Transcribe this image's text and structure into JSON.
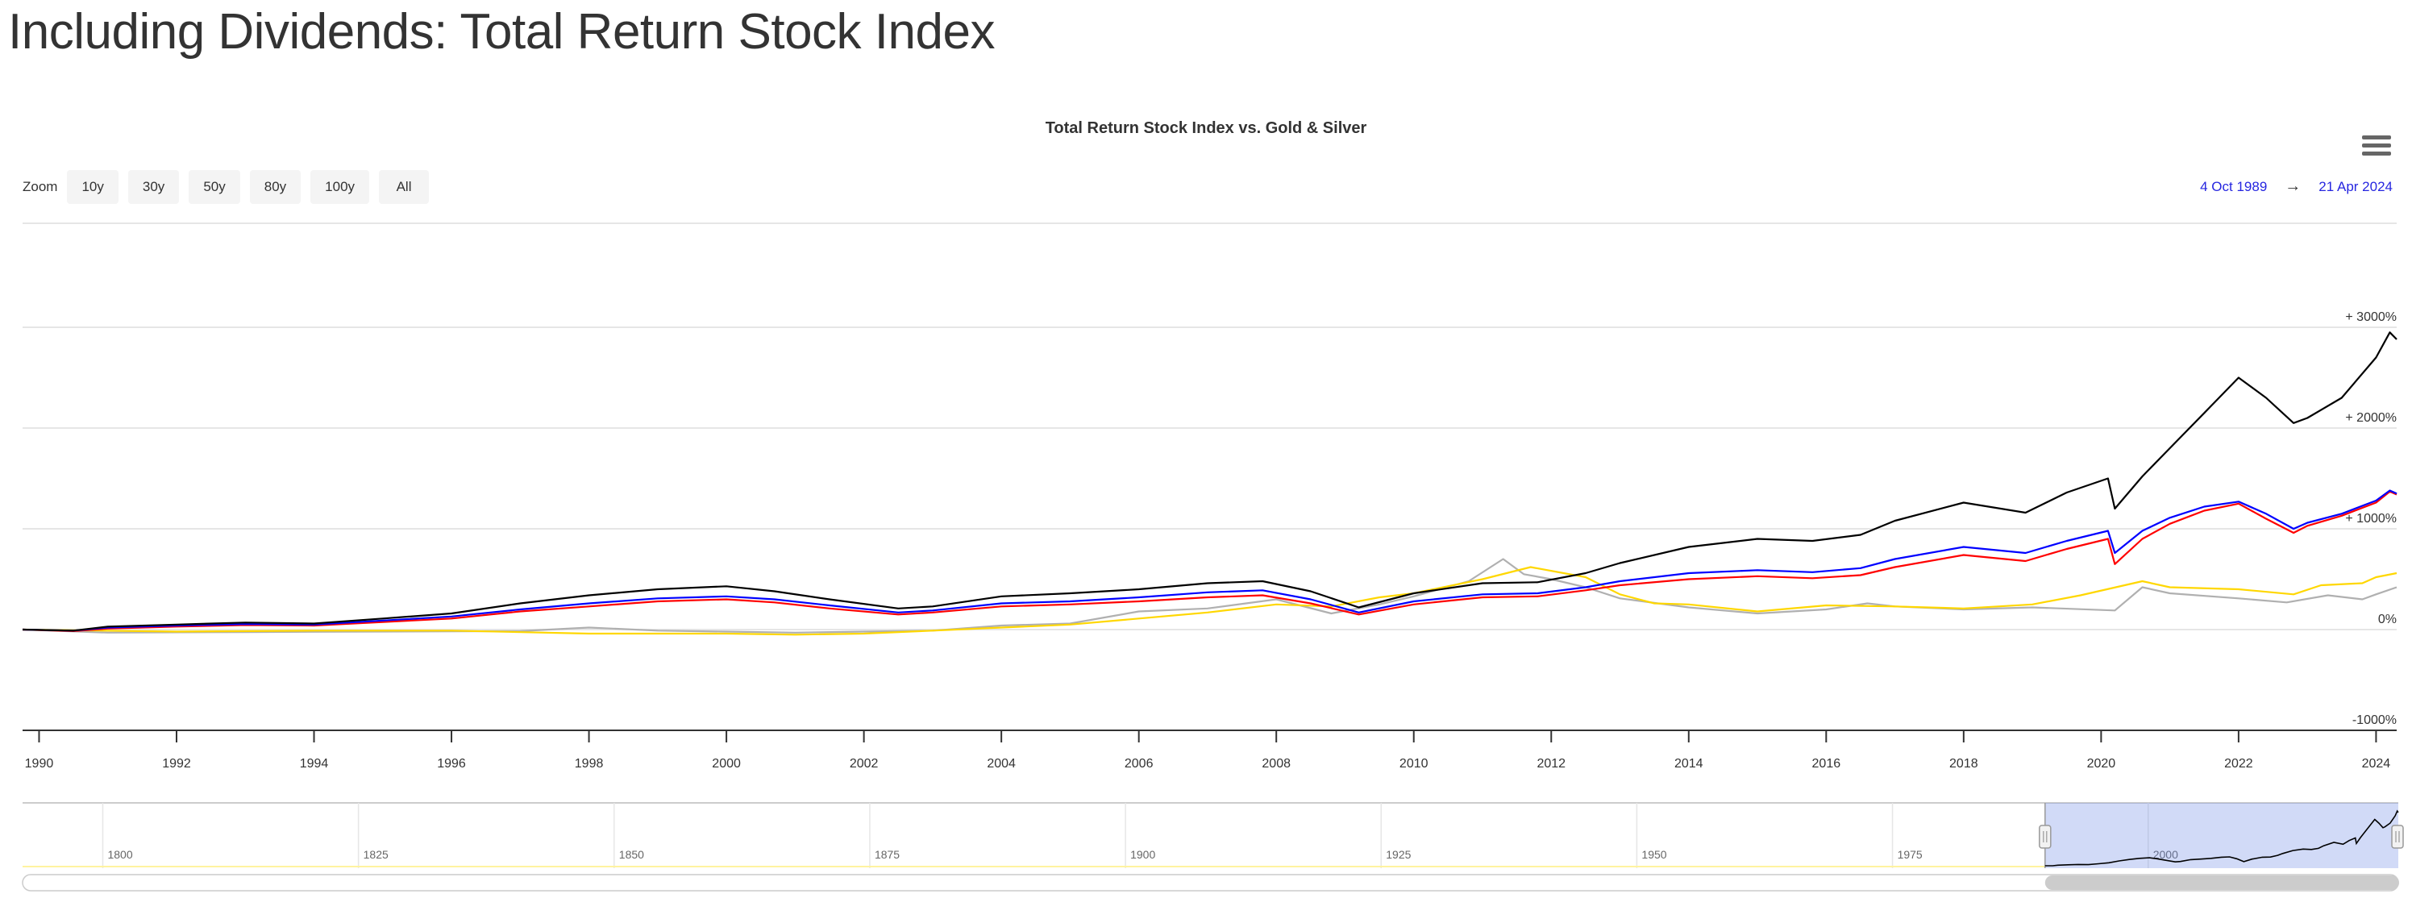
{
  "page": {
    "title": "Including Dividends: Total Return Stock Index"
  },
  "toolbar": {
    "zoom_label": "Zoom",
    "zoom_buttons": [
      "10y",
      "30y",
      "50y",
      "80y",
      "100y",
      "All"
    ],
    "range_from": "4 Oct 1989",
    "range_arrow": "→",
    "range_to": "21 Apr 2024",
    "menu_icon": "hamburger-menu-icon"
  },
  "chart_data": {
    "type": "line",
    "title": "Total Return Stock Index vs. Gold & Silver",
    "xlabel": "",
    "ylabel": "",
    "xlim": [
      1989.76,
      2024.3
    ],
    "ylim": [
      -1000,
      4000
    ],
    "grid": true,
    "legend": "none",
    "x_ticks": [
      1990,
      1992,
      1994,
      1996,
      1998,
      2000,
      2002,
      2004,
      2006,
      2008,
      2010,
      2012,
      2014,
      2016,
      2018,
      2020,
      2022,
      2024
    ],
    "y_ticks": [
      {
        "value": -1000,
        "label": "-1000%"
      },
      {
        "value": 0,
        "label": "0%"
      },
      {
        "value": 1000,
        "label": "+ 1000%"
      },
      {
        "value": 2000,
        "label": "+ 2000%"
      },
      {
        "value": 3000,
        "label": "+ 3000%"
      }
    ],
    "series": [
      {
        "color": "#000000",
        "points": [
          [
            1989.76,
            0
          ],
          [
            1990.5,
            -10
          ],
          [
            1991,
            30
          ],
          [
            1992,
            50
          ],
          [
            1993,
            70
          ],
          [
            1994,
            60
          ],
          [
            1995,
            110
          ],
          [
            1996,
            160
          ],
          [
            1997,
            260
          ],
          [
            1998,
            340
          ],
          [
            1999,
            400
          ],
          [
            2000,
            430
          ],
          [
            2000.7,
            380
          ],
          [
            2001.5,
            300
          ],
          [
            2002.5,
            210
          ],
          [
            2003,
            230
          ],
          [
            2004,
            330
          ],
          [
            2005,
            360
          ],
          [
            2006,
            400
          ],
          [
            2007,
            460
          ],
          [
            2007.8,
            480
          ],
          [
            2008.5,
            380
          ],
          [
            2009.2,
            220
          ],
          [
            2010,
            360
          ],
          [
            2011,
            460
          ],
          [
            2011.8,
            470
          ],
          [
            2012.5,
            560
          ],
          [
            2013,
            660
          ],
          [
            2014,
            820
          ],
          [
            2015,
            900
          ],
          [
            2015.8,
            880
          ],
          [
            2016.5,
            940
          ],
          [
            2017,
            1080
          ],
          [
            2018,
            1260
          ],
          [
            2018.9,
            1160
          ],
          [
            2019.5,
            1360
          ],
          [
            2020.1,
            1500
          ],
          [
            2020.2,
            1200
          ],
          [
            2020.6,
            1520
          ],
          [
            2021,
            1800
          ],
          [
            2021.5,
            2150
          ],
          [
            2022,
            2500
          ],
          [
            2022.4,
            2300
          ],
          [
            2022.8,
            2050
          ],
          [
            2023,
            2100
          ],
          [
            2023.5,
            2300
          ],
          [
            2024,
            2700
          ],
          [
            2024.2,
            2950
          ],
          [
            2024.3,
            2880
          ]
        ]
      },
      {
        "color": "#0000ff",
        "points": [
          [
            1989.76,
            0
          ],
          [
            1990.5,
            -10
          ],
          [
            1991,
            20
          ],
          [
            1992,
            40
          ],
          [
            1993,
            55
          ],
          [
            1994,
            50
          ],
          [
            1995,
            90
          ],
          [
            1996,
            130
          ],
          [
            1997,
            200
          ],
          [
            1998,
            260
          ],
          [
            1999,
            310
          ],
          [
            2000,
            330
          ],
          [
            2000.7,
            300
          ],
          [
            2001.5,
            240
          ],
          [
            2002.5,
            170
          ],
          [
            2003,
            190
          ],
          [
            2004,
            260
          ],
          [
            2005,
            280
          ],
          [
            2006,
            320
          ],
          [
            2007,
            370
          ],
          [
            2007.8,
            390
          ],
          [
            2008.5,
            300
          ],
          [
            2009.2,
            170
          ],
          [
            2010,
            280
          ],
          [
            2011,
            350
          ],
          [
            2011.8,
            360
          ],
          [
            2012.5,
            420
          ],
          [
            2013,
            480
          ],
          [
            2014,
            560
          ],
          [
            2015,
            590
          ],
          [
            2015.8,
            570
          ],
          [
            2016.5,
            610
          ],
          [
            2017,
            700
          ],
          [
            2018,
            820
          ],
          [
            2018.9,
            760
          ],
          [
            2019.5,
            880
          ],
          [
            2020.1,
            980
          ],
          [
            2020.2,
            760
          ],
          [
            2020.6,
            980
          ],
          [
            2021,
            1110
          ],
          [
            2021.5,
            1220
          ],
          [
            2022,
            1270
          ],
          [
            2022.4,
            1150
          ],
          [
            2022.8,
            1000
          ],
          [
            2023,
            1060
          ],
          [
            2023.5,
            1150
          ],
          [
            2024,
            1280
          ],
          [
            2024.2,
            1380
          ],
          [
            2024.3,
            1350
          ]
        ]
      },
      {
        "color": "#ff0000",
        "points": [
          [
            1989.76,
            0
          ],
          [
            1990.5,
            -15
          ],
          [
            1991,
            10
          ],
          [
            1992,
            30
          ],
          [
            1993,
            45
          ],
          [
            1994,
            40
          ],
          [
            1995,
            75
          ],
          [
            1996,
            110
          ],
          [
            1997,
            180
          ],
          [
            1998,
            230
          ],
          [
            1999,
            280
          ],
          [
            2000,
            300
          ],
          [
            2000.7,
            270
          ],
          [
            2001.5,
            210
          ],
          [
            2002.5,
            150
          ],
          [
            2003,
            170
          ],
          [
            2004,
            230
          ],
          [
            2005,
            250
          ],
          [
            2006,
            280
          ],
          [
            2007,
            320
          ],
          [
            2007.8,
            340
          ],
          [
            2008.5,
            260
          ],
          [
            2009.2,
            150
          ],
          [
            2010,
            250
          ],
          [
            2011,
            320
          ],
          [
            2011.8,
            330
          ],
          [
            2012.5,
            390
          ],
          [
            2013,
            440
          ],
          [
            2014,
            500
          ],
          [
            2015,
            530
          ],
          [
            2015.8,
            510
          ],
          [
            2016.5,
            540
          ],
          [
            2017,
            620
          ],
          [
            2018,
            740
          ],
          [
            2018.9,
            680
          ],
          [
            2019.5,
            800
          ],
          [
            2020.1,
            900
          ],
          [
            2020.2,
            650
          ],
          [
            2020.6,
            900
          ],
          [
            2021,
            1050
          ],
          [
            2021.5,
            1180
          ],
          [
            2022,
            1250
          ],
          [
            2022.4,
            1100
          ],
          [
            2022.8,
            960
          ],
          [
            2023,
            1030
          ],
          [
            2023.5,
            1130
          ],
          [
            2024,
            1260
          ],
          [
            2024.2,
            1370
          ],
          [
            2024.3,
            1340
          ]
        ]
      },
      {
        "color": "#ffd700",
        "points": [
          [
            1989.76,
            0
          ],
          [
            1992,
            -20
          ],
          [
            1994,
            -10
          ],
          [
            1996,
            -10
          ],
          [
            1998,
            -40
          ],
          [
            2000,
            -40
          ],
          [
            2001,
            -50
          ],
          [
            2002,
            -40
          ],
          [
            2003,
            -10
          ],
          [
            2004,
            20
          ],
          [
            2005,
            50
          ],
          [
            2006,
            110
          ],
          [
            2007,
            170
          ],
          [
            2008,
            250
          ],
          [
            2008.8,
            230
          ],
          [
            2009.5,
            320
          ],
          [
            2010,
            360
          ],
          [
            2011,
            500
          ],
          [
            2011.7,
            620
          ],
          [
            2012.5,
            520
          ],
          [
            2013,
            350
          ],
          [
            2013.5,
            260
          ],
          [
            2014,
            250
          ],
          [
            2015,
            180
          ],
          [
            2016,
            240
          ],
          [
            2017,
            230
          ],
          [
            2018,
            210
          ],
          [
            2019,
            250
          ],
          [
            2019.7,
            340
          ],
          [
            2020.6,
            480
          ],
          [
            2021,
            420
          ],
          [
            2022,
            400
          ],
          [
            2022.8,
            350
          ],
          [
            2023.2,
            440
          ],
          [
            2023.8,
            460
          ],
          [
            2024,
            520
          ],
          [
            2024.3,
            560
          ]
        ]
      },
      {
        "color": "#b0b0b0",
        "points": [
          [
            1989.76,
            0
          ],
          [
            1991,
            -30
          ],
          [
            1993,
            -25
          ],
          [
            1995,
            -20
          ],
          [
            1997,
            -15
          ],
          [
            1998,
            20
          ],
          [
            1999,
            -10
          ],
          [
            2000,
            -20
          ],
          [
            2001,
            -30
          ],
          [
            2002,
            -20
          ],
          [
            2003,
            -10
          ],
          [
            2004,
            40
          ],
          [
            2005,
            60
          ],
          [
            2006,
            180
          ],
          [
            2007,
            210
          ],
          [
            2008,
            300
          ],
          [
            2008.8,
            160
          ],
          [
            2009.5,
            250
          ],
          [
            2010,
            330
          ],
          [
            2010.8,
            480
          ],
          [
            2011.3,
            700
          ],
          [
            2011.6,
            550
          ],
          [
            2012,
            500
          ],
          [
            2012.5,
            420
          ],
          [
            2013,
            310
          ],
          [
            2014,
            220
          ],
          [
            2015,
            160
          ],
          [
            2016,
            200
          ],
          [
            2016.6,
            260
          ],
          [
            2017,
            230
          ],
          [
            2018,
            200
          ],
          [
            2019,
            220
          ],
          [
            2020.2,
            190
          ],
          [
            2020.6,
            420
          ],
          [
            2021,
            360
          ],
          [
            2022,
            310
          ],
          [
            2022.7,
            270
          ],
          [
            2023.3,
            340
          ],
          [
            2023.8,
            300
          ],
          [
            2024,
            350
          ],
          [
            2024.3,
            420
          ]
        ]
      }
    ]
  },
  "navigator": {
    "labels": [
      "1800",
      "1825",
      "1850",
      "1875",
      "1900",
      "1925",
      "1950",
      "1975",
      "2000"
    ],
    "xlim": [
      1792,
      2024.3
    ],
    "selected_range": [
      1989.76,
      2024.3
    ]
  }
}
